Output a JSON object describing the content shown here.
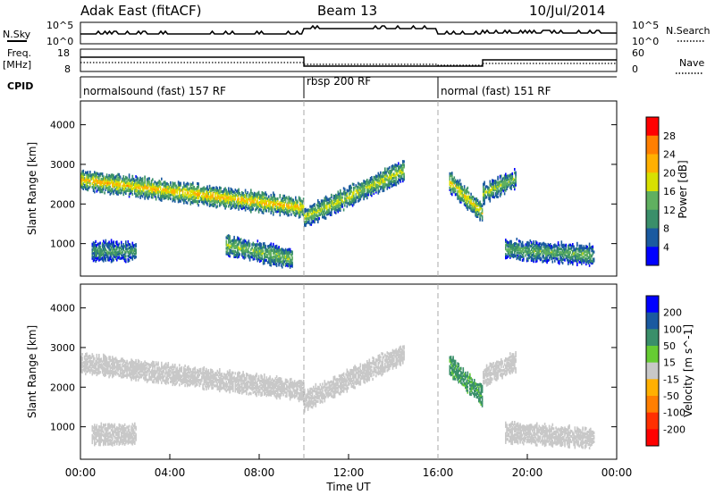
{
  "header": {
    "station": "Adak East (fitACF)",
    "beam": "Beam 13",
    "date": "10/Jul/2014"
  },
  "aux_panels": {
    "nsky_label": "N.Sky",
    "nsearch_label": "N.Search",
    "noise_ticks": [
      "10^5",
      "10^0"
    ],
    "freq_label": "Freq.",
    "freq_unit": "[MHz]",
    "freq_ticks": [
      "18",
      "8"
    ],
    "nave_label": "Nave",
    "nave_ticks": [
      "60",
      "0"
    ],
    "cpid_label": "CPID",
    "cpid_segments": [
      {
        "label": "normalsound (fast) 157 RF",
        "start_h": 0,
        "end_h": 10
      },
      {
        "label": "rbsp 200 RF",
        "start_h": 10,
        "end_h": 16
      },
      {
        "label": "normal (fast) 151 RF",
        "start_h": 16,
        "end_h": 24
      }
    ]
  },
  "chart_data": [
    {
      "type": "heatmap",
      "title": "",
      "ylabel": "Slant Range [km]",
      "ylim": [
        180,
        4600
      ],
      "yticks": [
        "1000",
        "2000",
        "3000",
        "4000"
      ],
      "xlim": [
        "00:00",
        "24:00"
      ],
      "colorbar": {
        "label": "Power [dB]",
        "ticks": [
          "28",
          "24",
          "20",
          "16",
          "12",
          "8",
          "4"
        ],
        "colors": [
          "#ff0000",
          "#ff7f00",
          "#ffb000",
          "#d8e000",
          "#60b060",
          "#3a8f6a",
          "#1a5aa0",
          "#0000ff"
        ]
      },
      "echo_bands": [
        {
          "start_h": 0.0,
          "end_h": 10.0,
          "range_start_km": 2650,
          "range_end_km": 1950,
          "strength_db": 22
        },
        {
          "start_h": 10.0,
          "end_h": 14.5,
          "range_start_km": 1700,
          "range_end_km": 2900,
          "strength_db": 18
        },
        {
          "start_h": 0.5,
          "end_h": 2.5,
          "range_start_km": 850,
          "range_end_km": 850,
          "strength_db": 12
        },
        {
          "start_h": 6.5,
          "end_h": 9.5,
          "range_start_km": 1000,
          "range_end_km": 650,
          "strength_db": 16
        },
        {
          "start_h": 16.5,
          "end_h": 18.0,
          "range_start_km": 2600,
          "range_end_km": 1800,
          "strength_db": 20
        },
        {
          "start_h": 18.0,
          "end_h": 19.5,
          "range_start_km": 2300,
          "range_end_km": 2700,
          "strength_db": 16
        },
        {
          "start_h": 19.0,
          "end_h": 23.0,
          "range_start_km": 900,
          "range_end_km": 750,
          "strength_db": 14
        }
      ]
    },
    {
      "type": "heatmap",
      "title": "",
      "xlabel": "Time UT",
      "ylabel": "Slant Range [km]",
      "ylim": [
        180,
        4600
      ],
      "yticks": [
        "1000",
        "2000",
        "3000",
        "4000"
      ],
      "xticks": [
        "00:00",
        "04:00",
        "08:00",
        "12:00",
        "16:00",
        "20:00",
        "00:00"
      ],
      "colorbar": {
        "label": "Velocity [m s^-1]",
        "ticks": [
          "200",
          "100",
          "50",
          "15",
          "-15",
          "-50",
          "-100",
          "-200"
        ],
        "colors": [
          "#0000ff",
          "#1a5aa0",
          "#3a8f6a",
          "#66cc33",
          "#c8c8c8",
          "#ffb000",
          "#ff7f00",
          "#ff3000",
          "#ff0000"
        ]
      },
      "echo_bands": [
        {
          "start_h": 0.0,
          "end_h": 10.0,
          "range_start_km": 2650,
          "range_end_km": 1950,
          "velocity": 0
        },
        {
          "start_h": 10.0,
          "end_h": 14.5,
          "range_start_km": 1700,
          "range_end_km": 2900,
          "velocity": 0
        },
        {
          "start_h": 0.5,
          "end_h": 2.5,
          "range_start_km": 850,
          "range_end_km": 850,
          "velocity": 0
        },
        {
          "start_h": 16.5,
          "end_h": 18.0,
          "range_start_km": 2600,
          "range_end_km": 1800,
          "velocity": 40
        },
        {
          "start_h": 18.0,
          "end_h": 19.5,
          "range_start_km": 2300,
          "range_end_km": 2700,
          "velocity": 0
        },
        {
          "start_h": 19.0,
          "end_h": 23.0,
          "range_start_km": 900,
          "range_end_km": 750,
          "velocity": 0
        }
      ]
    }
  ]
}
